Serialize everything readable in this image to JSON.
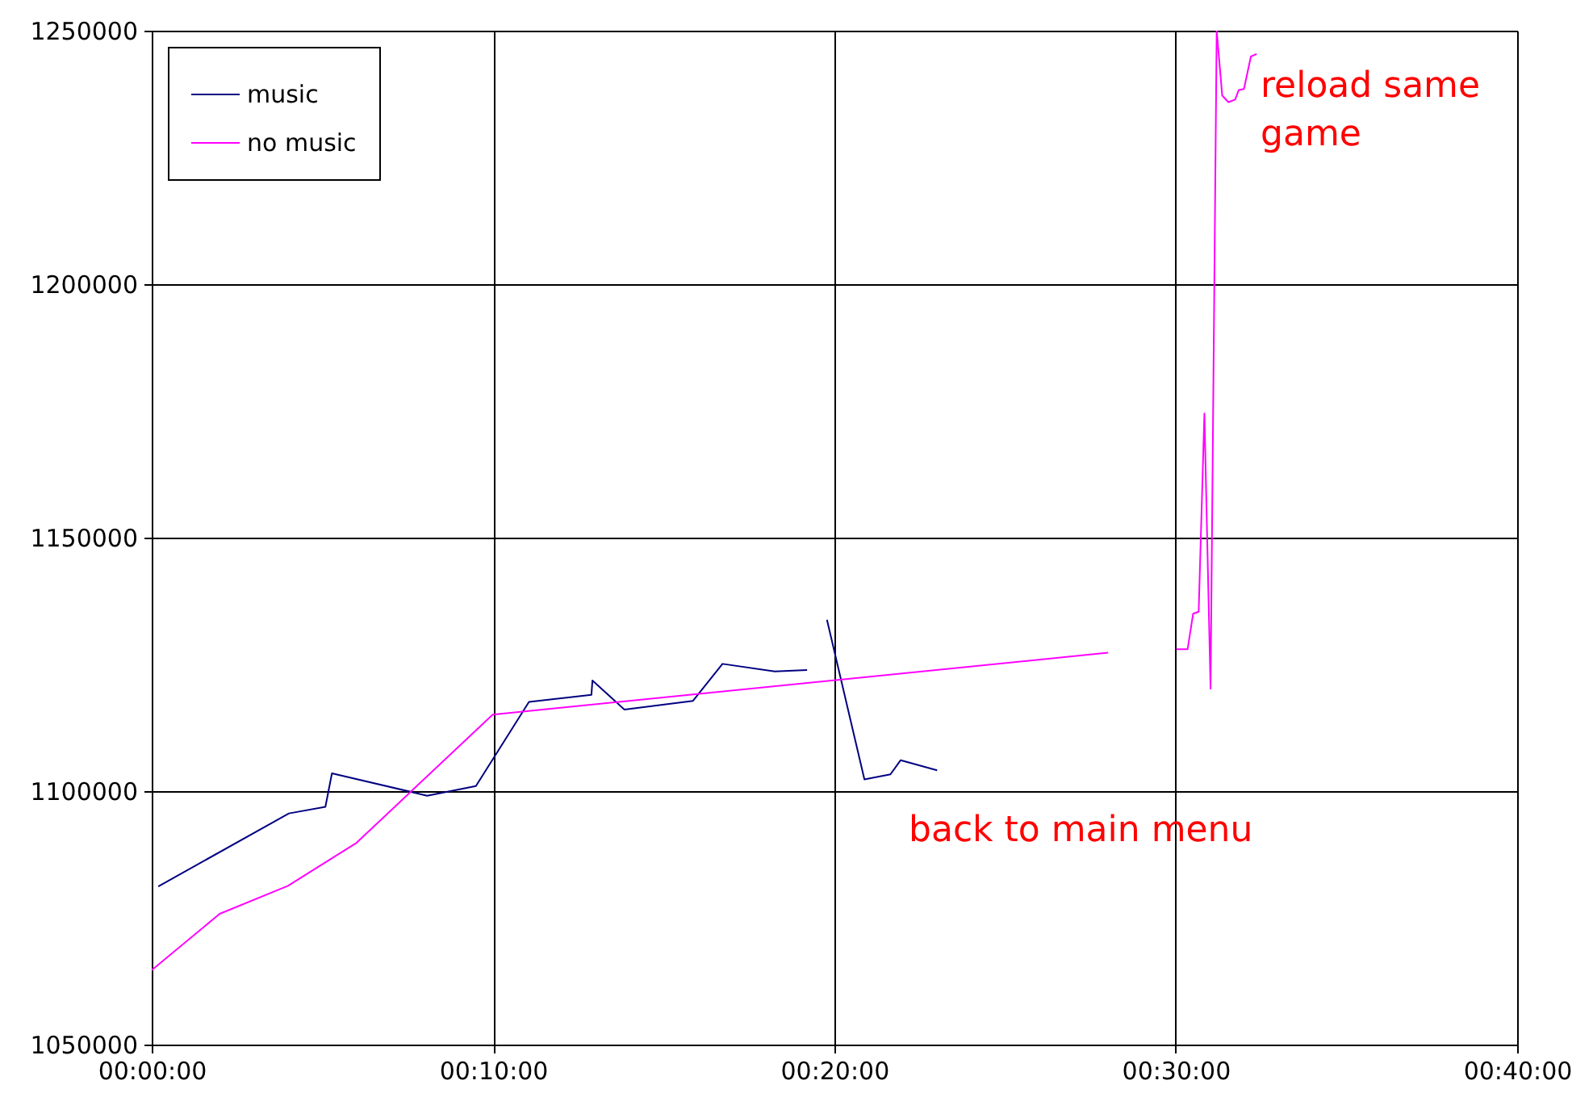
{
  "chart_data": {
    "type": "line",
    "xlim": [
      0,
      0.6667
    ],
    "ylim": [
      1050000,
      1250000
    ],
    "xticks": [
      {
        "value": 0,
        "label": "00:00:00"
      },
      {
        "value": 0.1667,
        "label": "00:10:00"
      },
      {
        "value": 0.3333,
        "label": "00:20:00"
      },
      {
        "value": 0.5,
        "label": "00:30:00"
      },
      {
        "value": 0.6667,
        "label": "00:40:00"
      }
    ],
    "yticks": [
      1050000,
      1100000,
      1150000,
      1200000,
      1250000
    ],
    "grid": true,
    "legend": "top left",
    "marker": "none",
    "line_style": "solid",
    "series": [
      {
        "name": "music",
        "color": "#000080",
        "x": [
          0.0032,
          0.067,
          0.0848,
          0.088,
          0.1345,
          0.1583,
          0.1842,
          0.2147,
          0.2152,
          0.2308,
          0.2643,
          0.2787,
          0.3042,
          0.32,
          0.325,
          0.3297,
          0.348,
          0.3607,
          0.3657,
          0.3835
        ],
        "values": [
          1081200,
          1095600,
          1096900,
          1103500,
          1099100,
          1101000,
          1117600,
          1119000,
          1121800,
          1116100,
          1117800,
          1125100,
          1123600,
          1123900,
          null,
          1133800,
          1102300,
          1103300,
          1106100,
          1104100
        ]
      },
      {
        "name": "no music",
        "color": "#ff00ff",
        "x": [
          0,
          0.0332,
          0.0665,
          0.1,
          0.1665,
          0.467,
          0.49,
          0.5003,
          0.5058,
          0.5085,
          0.5112,
          0.514,
          0.517,
          0.52,
          0.5227,
          0.5257,
          0.529,
          0.5308,
          0.5333,
          0.5367,
          0.5395
        ],
        "values": [
          1064700,
          1075800,
          1081300,
          1089800,
          1115100,
          1127300,
          null,
          1128000,
          1128000,
          1135000,
          1135400,
          1174500,
          1120200,
          1250000,
          1237200,
          1235900,
          1236400,
          1238300,
          1238500,
          1244900,
          1245400
        ]
      }
    ],
    "annotations": [
      "back to main menu",
      "reload same\ngame"
    ]
  }
}
